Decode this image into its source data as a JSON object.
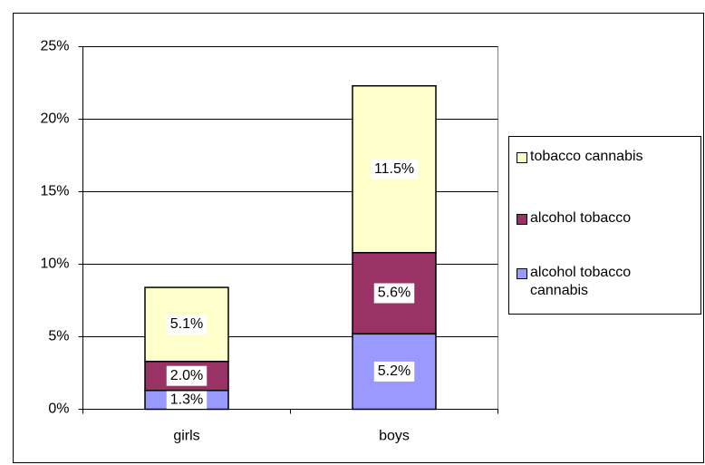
{
  "chart_data": {
    "type": "stacked_bar",
    "categories": [
      "girls",
      "boys"
    ],
    "series": [
      {
        "name": "alcohol tobacco cannabis",
        "color": "#9999ff",
        "values": [
          1.3,
          5.2
        ],
        "value_labels": [
          "1.3%",
          "5.2%"
        ]
      },
      {
        "name": "alcohol tobacco",
        "color": "#993366",
        "values": [
          2.0,
          5.6
        ],
        "value_labels": [
          "2.0%",
          "5.6%"
        ]
      },
      {
        "name": "tobacco cannabis",
        "color": "#ffffcc",
        "values": [
          5.1,
          11.5
        ],
        "value_labels": [
          "5.1%",
          "11.5%"
        ]
      }
    ],
    "ylim": [
      0,
      25
    ],
    "yticks": [
      {
        "value": 0,
        "label": "0%"
      },
      {
        "value": 5,
        "label": "5%"
      },
      {
        "value": 10,
        "label": "10%"
      },
      {
        "value": 15,
        "label": "15%"
      },
      {
        "value": 20,
        "label": "20%"
      },
      {
        "value": 25,
        "label": "25%"
      }
    ],
    "grid": true,
    "legend": "right"
  }
}
